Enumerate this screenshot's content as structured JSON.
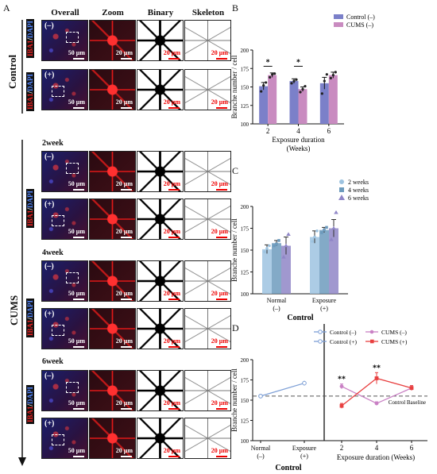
{
  "panel_letters": {
    "a": "A",
    "b": "B",
    "c": "C",
    "d": "D"
  },
  "image_columns": [
    "Overall",
    "Zoom",
    "Binary",
    "Skeleton"
  ],
  "stain_label": {
    "iba": "IBA1",
    "sep": "/",
    "dapi": "DAPI"
  },
  "groups": {
    "control": "Control",
    "cums": "CUMS"
  },
  "week_labels": [
    "2week",
    "4week",
    "6week"
  ],
  "signs": {
    "minus": "(–)",
    "plus": "(+)"
  },
  "scale_labels": {
    "overall": "50 μm",
    "zoom": "20 μm",
    "binary": "20 μm",
    "skeleton": "20 μm"
  },
  "colors": {
    "control": "#7b80c9",
    "cums": "#c98bc0",
    "w2": "#9dc3e0",
    "w4": "#6d9bbd",
    "w6": "#8f86c7",
    "line_control": "#7d9fd6",
    "line_cums_minus": "#c980c4",
    "line_cums_plus": "#e84040"
  },
  "chart_data": [
    {
      "panel": "B",
      "type": "bar",
      "ylabel": "Branche number / cell",
      "xlabel": "Exposure duration",
      "xlabel_unit": "(Weeks)",
      "categories": [
        "2",
        "4",
        "6"
      ],
      "ylim": [
        100,
        200
      ],
      "yticks": [
        100,
        125,
        150,
        175,
        200
      ],
      "series": [
        {
          "name": "Control (–)",
          "values": [
            151,
            158,
            155
          ],
          "errors": [
            5,
            3,
            8
          ],
          "points": [
            [
              144,
              152,
              156
            ],
            [
              155,
              158,
              160
            ],
            [
              141,
              158,
              167
            ]
          ]
        },
        {
          "name": "CUMS (–)",
          "values": [
            166,
            147,
            166
          ],
          "errors": [
            3,
            3,
            4
          ],
          "points": [
            [
              163,
              167,
              168
            ],
            [
              143,
              147,
              151
            ],
            [
              162,
              166,
              170
            ]
          ]
        }
      ],
      "significance": [
        {
          "category": "2",
          "label": "*"
        },
        {
          "category": "4",
          "label": "*"
        }
      ],
      "legend": "top-right"
    },
    {
      "panel": "C",
      "type": "bar",
      "ylabel": "Branche number / cell",
      "xlabel": "Control",
      "categories": [
        "Normal",
        "Exposure"
      ],
      "category_sub": [
        "(–)",
        "(+)"
      ],
      "ylim": [
        100,
        200
      ],
      "yticks": [
        100,
        125,
        150,
        175,
        200
      ],
      "series": [
        {
          "name": "2 weeks",
          "marker": "circle",
          "values": [
            151,
            165
          ],
          "errors": [
            5,
            7
          ],
          "points": [
            [
              148,
              152,
              155
            ],
            [
              160,
              165,
              172
            ]
          ]
        },
        {
          "name": "4 weeks",
          "marker": "square",
          "values": [
            158,
            173
          ],
          "errors": [
            3,
            3
          ],
          "points": [
            [
              155,
              157,
              161
            ],
            [
              170,
              173,
              176
            ]
          ]
        },
        {
          "name": "6 weeks",
          "marker": "triangle",
          "values": [
            155,
            175
          ],
          "errors": [
            10,
            10
          ],
          "points": [
            [
              142,
              155,
              168
            ],
            [
              162,
              175,
              193
            ]
          ]
        }
      ],
      "legend": "top-right"
    },
    {
      "panel": "D",
      "type": "line",
      "ylabel": "Branche number / cell",
      "ylim": [
        100,
        200
      ],
      "yticks": [
        100,
        125,
        150,
        175,
        200
      ],
      "left_group": {
        "xlabel": "Control",
        "categories": [
          "Normal",
          "Exposure"
        ],
        "category_sub": [
          "(–)",
          "(+)"
        ],
        "series": [
          {
            "name": "Control (–)",
            "values": [
              155,
              null
            ],
            "errors": [
              2,
              null
            ]
          },
          {
            "name": "Control (+)",
            "values": [
              155,
              171
            ],
            "errors": [
              2,
              3
            ]
          }
        ]
      },
      "right_group": {
        "xlabel": "Exposure duration (Weeks)",
        "categories": [
          "2",
          "4",
          "6"
        ],
        "series": [
          {
            "name": "CUMS (–)",
            "values": [
              167,
              146,
              165
            ],
            "errors": [
              3,
              2,
              3
            ]
          },
          {
            "name": "CUMS (+)",
            "values": [
              143,
              177,
              165
            ],
            "errors": [
              3,
              7,
              3
            ]
          }
        ],
        "significance": [
          {
            "category": "2",
            "label": "**"
          },
          {
            "category": "4",
            "label": "**"
          }
        ]
      },
      "baseline": {
        "value": 155,
        "label": "Control Baseline"
      },
      "legend": "top"
    }
  ]
}
